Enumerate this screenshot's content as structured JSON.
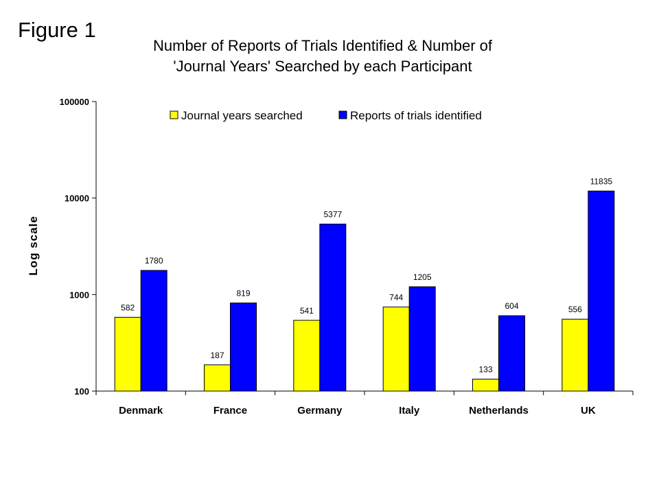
{
  "figure_label": "Figure 1",
  "chart_data": {
    "type": "bar",
    "title_line1": "Number of Reports of Trials Identified & Number of",
    "title_line2": "'Journal Years' Searched by each Participant",
    "ylabel": "Log scale",
    "xlabel": "",
    "yscale": "log",
    "ylim": [
      100,
      100000
    ],
    "y_ticks": [
      {
        "value": 100,
        "label": "100"
      },
      {
        "value": 1000,
        "label": "1000"
      },
      {
        "value": 10000,
        "label": "10000"
      },
      {
        "value": 100000,
        "label": "100000"
      }
    ],
    "grid": false,
    "legend_position": "top",
    "categories": [
      "Denmark",
      "France",
      "Germany",
      "Italy",
      "Netherlands",
      "UK"
    ],
    "series": [
      {
        "name": "Journal years searched",
        "color": "#ffff00",
        "values": [
          582,
          187,
          541,
          744,
          133,
          556
        ]
      },
      {
        "name": "Reports of trials identified",
        "color": "#0000ff",
        "values": [
          1780,
          819,
          5377,
          1205,
          604,
          11835
        ]
      }
    ]
  }
}
